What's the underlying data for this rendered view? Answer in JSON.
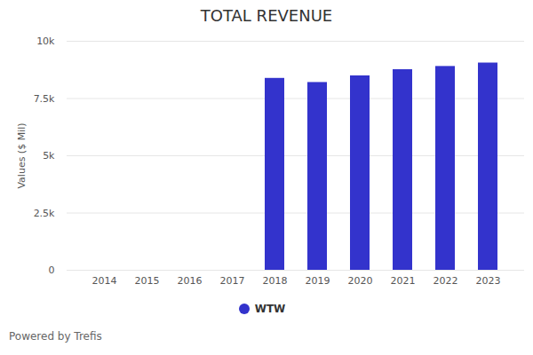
{
  "chart_data": {
    "type": "bar",
    "title": "TOTAL REVENUE",
    "y_label": "Values ($ Mil)",
    "caption": "Powered by Trefis",
    "categories": [
      "2014",
      "2015",
      "2016",
      "2017",
      "2018",
      "2019",
      "2020",
      "2021",
      "2022",
      "2023"
    ],
    "series": [
      {
        "name": "WTW",
        "color": "#3333cc",
        "values": [
          null,
          null,
          null,
          null,
          8380,
          8200,
          8490,
          8760,
          8900,
          9050
        ]
      }
    ],
    "ylim": [
      0,
      10000
    ],
    "yticks": [
      {
        "value": 0,
        "label": "0"
      },
      {
        "value": 2500,
        "label": "2.5k"
      },
      {
        "value": 5000,
        "label": "5k"
      },
      {
        "value": 7500,
        "label": "7.5k"
      },
      {
        "value": 10000,
        "label": "10k"
      }
    ],
    "grid": true,
    "legend": "bottom"
  }
}
